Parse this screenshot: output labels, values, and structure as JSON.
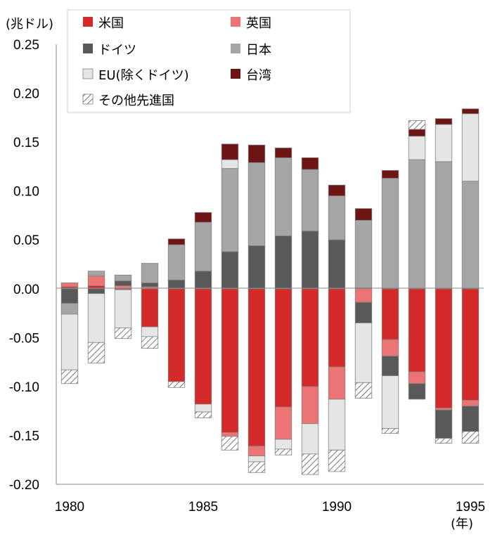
{
  "chart_data": {
    "type": "bar",
    "stacked": true,
    "y_unit_label": "(兆ドル)",
    "x_unit_label": "(年)",
    "ylim": [
      -0.2,
      0.25
    ],
    "y_ticks": [
      "0.25",
      "0.20",
      "0.15",
      "0.10",
      "0.05",
      "0.00",
      "-0.05",
      "-0.10",
      "-0.15",
      "-0.20"
    ],
    "y_tick_values": [
      0.25,
      0.2,
      0.15,
      0.1,
      0.05,
      0.0,
      -0.05,
      -0.1,
      -0.15,
      -0.2
    ],
    "x_tick_labels": [
      "1980",
      "1985",
      "1990",
      "1995"
    ],
    "x_tick_years": [
      1980,
      1985,
      1990,
      1995
    ],
    "categories": [
      1980,
      1981,
      1982,
      1983,
      1984,
      1985,
      1986,
      1987,
      1988,
      1989,
      1990,
      1991,
      1992,
      1993,
      1994,
      1995
    ],
    "grid": false,
    "legend_position": "top-left",
    "series": [
      {
        "name": "米国",
        "color": "#d42a2a",
        "hatch": false,
        "values": [
          0.002,
          0.003,
          -0.001,
          -0.039,
          -0.095,
          -0.118,
          -0.147,
          -0.161,
          -0.121,
          -0.1,
          -0.08,
          0.001,
          -0.052,
          -0.085,
          -0.122,
          -0.114
        ]
      },
      {
        "name": "英国",
        "color": "#ec7474",
        "hatch": false,
        "values": [
          0.004,
          0.01,
          0.003,
          0.002,
          0.0,
          0.0,
          -0.004,
          -0.01,
          -0.033,
          -0.038,
          -0.033,
          -0.014,
          -0.017,
          -0.012,
          -0.002,
          -0.006
        ]
      },
      {
        "name": "ドイツ",
        "color": "#595959",
        "hatch": false,
        "values": [
          -0.015,
          -0.005,
          0.005,
          0.004,
          0.009,
          0.018,
          0.038,
          0.044,
          0.054,
          0.059,
          0.05,
          -0.021,
          -0.02,
          -0.016,
          -0.029,
          -0.026
        ]
      },
      {
        "name": "日本",
        "color": "#a6a6a6",
        "hatch": false,
        "values": [
          -0.011,
          0.005,
          0.006,
          0.02,
          0.036,
          0.05,
          0.085,
          0.085,
          0.08,
          0.063,
          0.045,
          0.069,
          0.113,
          0.132,
          0.13,
          0.11
        ]
      },
      {
        "name": "EU(除くドイツ)",
        "color": "#e5e5e5",
        "hatch": false,
        "values": [
          -0.057,
          -0.05,
          -0.039,
          -0.01,
          0.0,
          -0.008,
          0.009,
          -0.006,
          -0.01,
          -0.031,
          -0.052,
          -0.061,
          -0.054,
          0.024,
          0.038,
          0.069
        ]
      },
      {
        "name": "台湾",
        "color": "#6d1515",
        "hatch": false,
        "values": [
          0.0,
          0.0,
          0.0,
          0.0,
          0.006,
          0.01,
          0.016,
          0.018,
          0.01,
          0.012,
          0.011,
          0.012,
          0.008,
          0.007,
          0.006,
          0.005
        ]
      },
      {
        "name": "その他先進国",
        "color": "#ffffff",
        "hatch": true,
        "values": [
          -0.014,
          -0.021,
          -0.011,
          -0.012,
          -0.006,
          -0.006,
          -0.014,
          -0.011,
          -0.006,
          -0.021,
          -0.022,
          -0.016,
          -0.005,
          0.009,
          -0.005,
          -0.012
        ]
      }
    ]
  }
}
